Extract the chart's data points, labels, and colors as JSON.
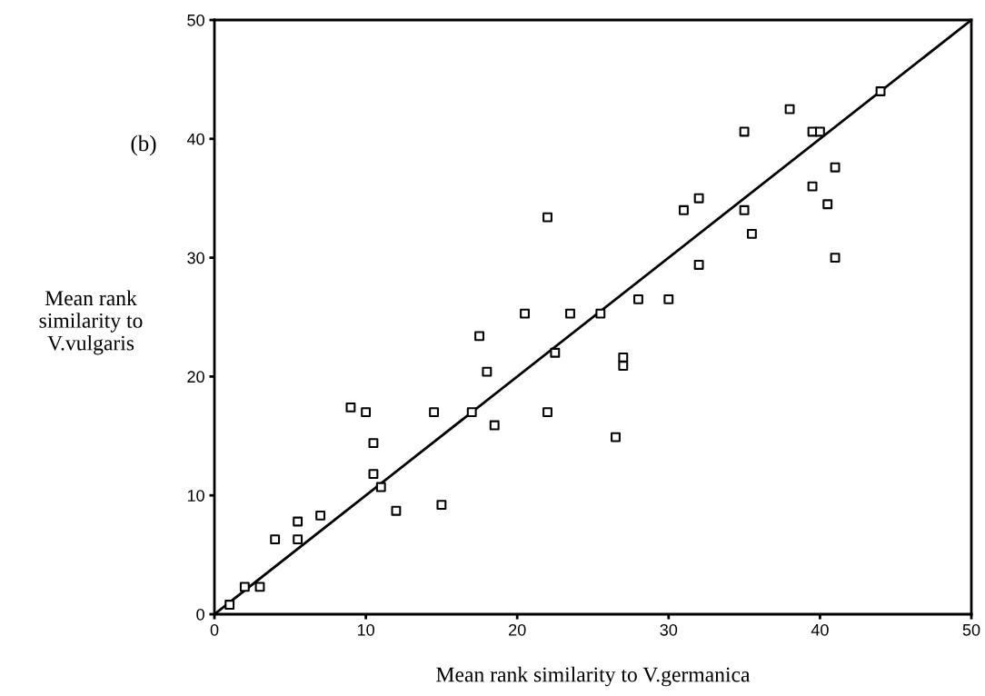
{
  "chart_data": {
    "type": "scatter",
    "xlabel": "Mean rank similarity to V.germanica",
    "ylabel": "Mean rank\nsimilarity to\nV.vulgaris",
    "annotations": [
      "(b)"
    ],
    "marker": "square",
    "grid": false,
    "xlim": [
      0,
      50
    ],
    "ylim": [
      0,
      50
    ],
    "xticks": [
      0,
      10,
      20,
      30,
      40,
      50
    ],
    "yticks": [
      0,
      10,
      20,
      30,
      40,
      50
    ],
    "series": [
      {
        "color": "#000000",
        "x": [
          1,
          2,
          3,
          4,
          5.5,
          5.5,
          7,
          9,
          10,
          10.5,
          10.5,
          11,
          12,
          14.5,
          15,
          17,
          17.5,
          18,
          18.5,
          20.5,
          22,
          22,
          22.5,
          23.5,
          25.5,
          26.5,
          27,
          27,
          28,
          30,
          31,
          32,
          32,
          35,
          35,
          35.5,
          38,
          39.5,
          39.5,
          40,
          40.5,
          41,
          41,
          44
        ],
        "values": [
          0.8,
          2.3,
          2.3,
          6.3,
          7.8,
          6.3,
          8.3,
          17.4,
          17,
          14.4,
          11.8,
          10.7,
          8.7,
          17,
          9.2,
          17,
          23.4,
          20.4,
          15.9,
          25.3,
          33.4,
          17,
          22,
          25.3,
          25.3,
          14.9,
          21.6,
          20.9,
          26.5,
          26.5,
          34,
          35,
          29.4,
          40.6,
          34,
          32,
          42.5,
          40.6,
          36,
          40.6,
          34.5,
          37.6,
          30,
          44
        ]
      },
      {
        "type": "line",
        "marker": "none",
        "color": "#000000",
        "x": [
          0,
          50
        ],
        "values": [
          0,
          50
        ]
      }
    ]
  }
}
